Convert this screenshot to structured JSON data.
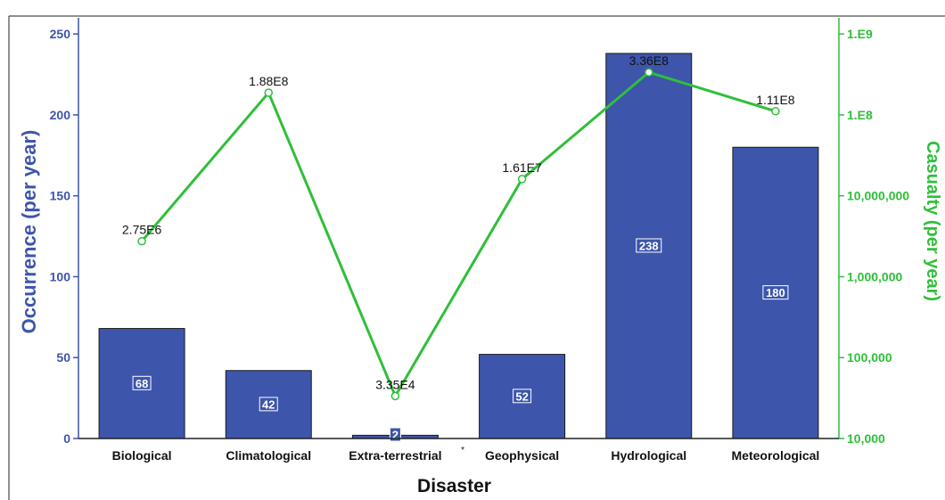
{
  "chart_data": {
    "type": "bar+line",
    "xlabel": "Disaster",
    "categories": [
      "Biological",
      "Climatological",
      "Extra-terrestrial",
      "Geophysical",
      "Hydrological",
      "Meteorological"
    ],
    "category_marks": [
      "",
      "",
      "*",
      "",
      "",
      ""
    ],
    "bars": {
      "axis": "left",
      "values": [
        68,
        42,
        2,
        52,
        238,
        180
      ],
      "labels": [
        "68",
        "42",
        "2",
        "52",
        "238",
        "180"
      ],
      "color": "#3d55ab"
    },
    "line": {
      "axis": "right",
      "values": [
        2750000,
        188000000,
        33500,
        16100000,
        336000000,
        111000000
      ],
      "labels": [
        "2.75E6",
        "1.88E8",
        "3.35E4",
        "1.61E7",
        "3.36E8",
        "1.11E8"
      ],
      "color": "#2fbf3a"
    },
    "y_left": {
      "label": "Occurrence (per year)",
      "min": 0,
      "max": 260,
      "ticks": [
        0,
        50,
        100,
        150,
        200,
        250
      ],
      "tick_labels": [
        "0",
        "50",
        "100",
        "150",
        "200",
        "250"
      ],
      "color": "#3d55ab"
    },
    "y_right": {
      "label": "Casualty (per year)",
      "scale": "log",
      "ticks": [
        10000,
        100000,
        1000000,
        10000000,
        100000000,
        1000000000
      ],
      "tick_labels": [
        "10,000",
        "100,000",
        "1,000,000",
        "10,000,000",
        "1.E8",
        "1.E9"
      ],
      "color": "#2fbf3a"
    },
    "grid": false,
    "legend": "none"
  }
}
